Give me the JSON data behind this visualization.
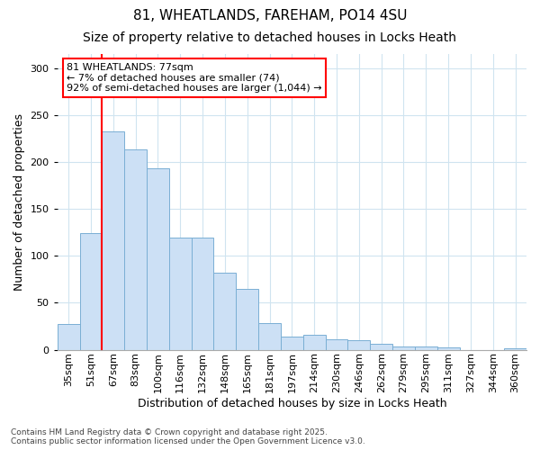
{
  "title_line1": "81, WHEATLANDS, FAREHAM, PO14 4SU",
  "title_line2": "Size of property relative to detached houses in Locks Heath",
  "xlabel": "Distribution of detached houses by size in Locks Heath",
  "ylabel": "Number of detached properties",
  "categories": [
    "35sqm",
    "51sqm",
    "67sqm",
    "83sqm",
    "100sqm",
    "116sqm",
    "132sqm",
    "148sqm",
    "165sqm",
    "181sqm",
    "197sqm",
    "214sqm",
    "230sqm",
    "246sqm",
    "262sqm",
    "279sqm",
    "295sqm",
    "311sqm",
    "327sqm",
    "344sqm",
    "360sqm"
  ],
  "values": [
    27,
    124,
    233,
    213,
    193,
    119,
    119,
    82,
    65,
    28,
    14,
    16,
    11,
    10,
    6,
    3,
    3,
    2,
    0,
    0,
    1
  ],
  "bar_color": "#cce0f5",
  "bar_edge_color": "#7aafd4",
  "vline_x": 1.5,
  "vline_color": "red",
  "annotation_text": "81 WHEATLANDS: 77sqm\n← 7% of detached houses are smaller (74)\n92% of semi-detached houses are larger (1,044) →",
  "annotation_box_color": "white",
  "annotation_box_edge_color": "red",
  "ylim": [
    0,
    315
  ],
  "yticks": [
    0,
    50,
    100,
    150,
    200,
    250,
    300
  ],
  "footnote": "Contains HM Land Registry data © Crown copyright and database right 2025.\nContains public sector information licensed under the Open Government Licence v3.0.",
  "bg_color": "#ffffff",
  "plot_bg_color": "#ffffff",
  "title_fontsize": 11,
  "subtitle_fontsize": 10,
  "axis_label_fontsize": 9,
  "tick_fontsize": 8,
  "annotation_fontsize": 8,
  "footnote_fontsize": 6.5
}
